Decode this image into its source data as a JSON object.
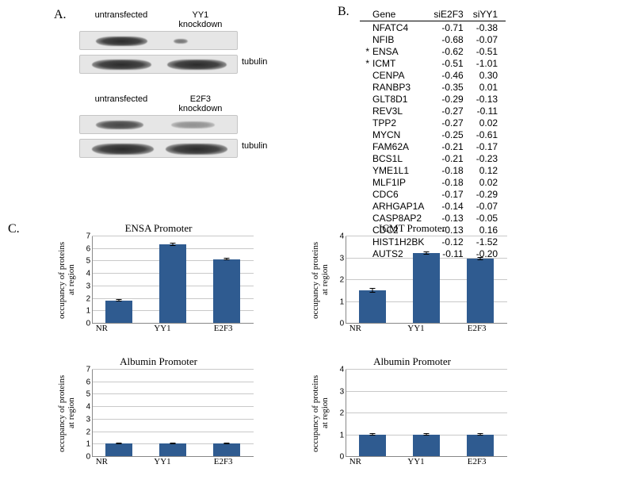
{
  "panelA": {
    "label": "A.",
    "group1": {
      "labels": [
        "untransfected",
        "YY1\nknockdown"
      ],
      "tubulin": "tubulin"
    },
    "group2": {
      "labels": [
        "untransfected",
        "E2F3\nknockdown"
      ],
      "tubulin": "tubulin"
    }
  },
  "panelB": {
    "label": "B.",
    "headers": [
      "Gene",
      "siE2F3",
      "siYY1"
    ],
    "rows": [
      {
        "ast": "",
        "gene": "NFATC4",
        "siE2F3": "-0.71",
        "siYY1": "-0.38"
      },
      {
        "ast": "",
        "gene": "NFIB",
        "siE2F3": "-0.68",
        "siYY1": "-0.07"
      },
      {
        "ast": "*",
        "gene": "ENSA",
        "siE2F3": "-0.62",
        "siYY1": "-0.51"
      },
      {
        "ast": "*",
        "gene": "ICMT",
        "siE2F3": "-0.51",
        "siYY1": "-1.01"
      },
      {
        "ast": "",
        "gene": "CENPA",
        "siE2F3": "-0.46",
        "siYY1": "0.30"
      },
      {
        "ast": "",
        "gene": "RANBP3",
        "siE2F3": "-0.35",
        "siYY1": "0.01"
      },
      {
        "ast": "",
        "gene": "GLT8D1",
        "siE2F3": "-0.29",
        "siYY1": "-0.13"
      },
      {
        "ast": "",
        "gene": "REV3L",
        "siE2F3": "-0.27",
        "siYY1": "-0.11"
      },
      {
        "ast": "",
        "gene": "TPP2",
        "siE2F3": "-0.27",
        "siYY1": "0.02"
      },
      {
        "ast": "",
        "gene": "MYCN",
        "siE2F3": "-0.25",
        "siYY1": "-0.61"
      },
      {
        "ast": "",
        "gene": "FAM62A",
        "siE2F3": "-0.21",
        "siYY1": "-0.17"
      },
      {
        "ast": "",
        "gene": "BCS1L",
        "siE2F3": "-0.21",
        "siYY1": "-0.23"
      },
      {
        "ast": "",
        "gene": "YME1L1",
        "siE2F3": "-0.18",
        "siYY1": "0.12"
      },
      {
        "ast": "",
        "gene": "MLF1IP",
        "siE2F3": "-0.18",
        "siYY1": "0.02"
      },
      {
        "ast": "",
        "gene": "CDC6",
        "siE2F3": "-0.17",
        "siYY1": "-0.29"
      },
      {
        "ast": "",
        "gene": "ARHGAP1A",
        "siE2F3": "-0.14",
        "siYY1": "-0.07"
      },
      {
        "ast": "",
        "gene": "CASP8AP2",
        "siE2F3": "-0.13",
        "siYY1": "-0.05"
      },
      {
        "ast": "",
        "gene": "CDC2",
        "siE2F3": "-0.13",
        "siYY1": "0.16"
      },
      {
        "ast": "",
        "gene": "HIST1H2BK",
        "siE2F3": "-0.12",
        "siYY1": "-1.52"
      },
      {
        "ast": "",
        "gene": "AUTS2",
        "siE2F3": "-0.11",
        "siYY1": "-0.20"
      }
    ]
  },
  "panelC": {
    "label": "C.",
    "ylabel": "occupancy of proteins\nat region",
    "bar_color": "#2f5b90",
    "grid_color": "#c9c9c9",
    "axis_color": "#888888",
    "label_fontsize": 11,
    "charts": [
      {
        "title": "ENSA Promoter",
        "ymax": 7,
        "ytick_step": 1,
        "categories": [
          "NR",
          "YY1",
          "E2F3"
        ],
        "values": [
          1.8,
          6.3,
          5.1
        ],
        "errors": [
          0.1,
          0.1,
          0.1
        ]
      },
      {
        "title": "ICMT Promoter",
        "ymax": 4,
        "ytick_step": 1,
        "categories": [
          "NR",
          "YY1",
          "E2F3"
        ],
        "values": [
          1.5,
          3.2,
          2.95
        ],
        "errors": [
          0.1,
          0.08,
          0.08
        ]
      },
      {
        "title": "Albumin Promoter",
        "ymax": 7,
        "ytick_step": 1,
        "categories": [
          "NR",
          "YY1",
          "E2F3"
        ],
        "values": [
          1.0,
          1.0,
          1.0
        ],
        "errors": [
          0.07,
          0.07,
          0.07
        ]
      },
      {
        "title": "Albumin Promoter",
        "ymax": 4,
        "ytick_step": 1,
        "categories": [
          "NR",
          "YY1",
          "E2F3"
        ],
        "values": [
          1.0,
          1.0,
          1.0
        ],
        "errors": [
          0.05,
          0.05,
          0.05
        ]
      }
    ]
  }
}
